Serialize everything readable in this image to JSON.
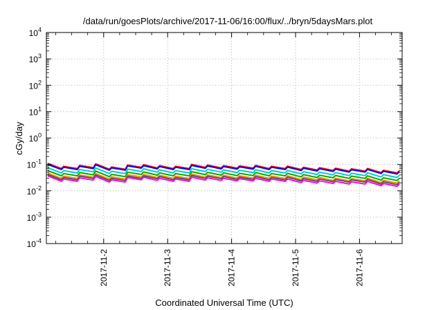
{
  "chart_data": {
    "type": "line",
    "title": "/data/run/goesPlots/archive/2017-11-06/16:00/flux/../bryn/5daysMars.plot",
    "xlabel": "Coordinated Universal Time (UTC)",
    "ylabel": "cGy/day",
    "y_scale": "log",
    "ylim": [
      0.0001,
      10000
    ],
    "y_ticks": [
      {
        "base": "10",
        "exp": "-4"
      },
      {
        "base": "10",
        "exp": "-3"
      },
      {
        "base": "10",
        "exp": "-2"
      },
      {
        "base": "10",
        "exp": "-1"
      },
      {
        "base": "10",
        "exp": "0"
      },
      {
        "base": "10",
        "exp": "1"
      },
      {
        "base": "10",
        "exp": "2"
      },
      {
        "base": "10",
        "exp": "3"
      },
      {
        "base": "10",
        "exp": "4"
      }
    ],
    "xlim": [
      "2017-11-01T02:30",
      "2017-11-06T16:00"
    ],
    "x_ticks": [
      "2017-11-2",
      "2017-11-3",
      "2017-11-4",
      "2017-11-5",
      "2017-11-6"
    ],
    "grid": true,
    "legend": "none",
    "x": [
      "2017-11-01T03:00",
      "2017-11-01T09:00",
      "2017-11-01T15:00",
      "2017-11-01T21:00",
      "2017-11-02T03:00",
      "2017-11-02T09:00",
      "2017-11-02T15:00",
      "2017-11-02T21:00",
      "2017-11-03T03:00",
      "2017-11-03T09:00",
      "2017-11-03T15:00",
      "2017-11-03T21:00",
      "2017-11-04T03:00",
      "2017-11-04T09:00",
      "2017-11-04T15:00",
      "2017-11-04T21:00",
      "2017-11-05T03:00",
      "2017-11-05T09:00",
      "2017-11-05T15:00",
      "2017-11-05T21:00",
      "2017-11-06T03:00",
      "2017-11-06T09:00",
      "2017-11-06T15:00"
    ],
    "series": [
      {
        "color": "#ff0000",
        "values": [
          0.11,
          0.085,
          0.092,
          0.105,
          0.08,
          0.095,
          0.098,
          0.09,
          0.085,
          0.1,
          0.095,
          0.09,
          0.088,
          0.092,
          0.085,
          0.086,
          0.078,
          0.075,
          0.072,
          0.068,
          0.07,
          0.06,
          0.058
        ]
      },
      {
        "color": "#0000ff",
        "values": [
          0.1,
          0.078,
          0.085,
          0.097,
          0.074,
          0.088,
          0.09,
          0.083,
          0.078,
          0.092,
          0.087,
          0.083,
          0.081,
          0.085,
          0.078,
          0.079,
          0.072,
          0.069,
          0.066,
          0.063,
          0.065,
          0.055,
          0.053
        ]
      },
      {
        "color": "#00cccc",
        "values": [
          0.075,
          0.058,
          0.064,
          0.073,
          0.055,
          0.066,
          0.068,
          0.062,
          0.058,
          0.069,
          0.065,
          0.062,
          0.06,
          0.063,
          0.058,
          0.059,
          0.053,
          0.051,
          0.049,
          0.046,
          0.048,
          0.041,
          0.039
        ]
      },
      {
        "color": "#00aa00",
        "values": [
          0.058,
          0.045,
          0.049,
          0.056,
          0.042,
          0.051,
          0.052,
          0.048,
          0.045,
          0.053,
          0.05,
          0.048,
          0.046,
          0.049,
          0.045,
          0.046,
          0.041,
          0.039,
          0.038,
          0.036,
          0.037,
          0.031,
          0.03
        ]
      },
      {
        "color": "#ff8c00",
        "values": [
          0.047,
          0.036,
          0.04,
          0.045,
          0.034,
          0.041,
          0.042,
          0.039,
          0.036,
          0.043,
          0.04,
          0.039,
          0.037,
          0.039,
          0.036,
          0.037,
          0.033,
          0.032,
          0.03,
          0.029,
          0.03,
          0.025,
          0.024
        ]
      },
      {
        "color": "#555555",
        "values": [
          0.042,
          0.032,
          0.036,
          0.04,
          0.03,
          0.036,
          0.037,
          0.035,
          0.032,
          0.038,
          0.036,
          0.035,
          0.033,
          0.035,
          0.032,
          0.033,
          0.029,
          0.028,
          0.027,
          0.026,
          0.027,
          0.022,
          0.021
        ]
      },
      {
        "color": "#ff00ff",
        "values": [
          0.037,
          0.028,
          0.031,
          0.035,
          0.026,
          0.032,
          0.033,
          0.03,
          0.028,
          0.033,
          0.031,
          0.03,
          0.029,
          0.03,
          0.028,
          0.028,
          0.025,
          0.024,
          0.023,
          0.022,
          0.023,
          0.019,
          0.018
        ]
      }
    ]
  }
}
